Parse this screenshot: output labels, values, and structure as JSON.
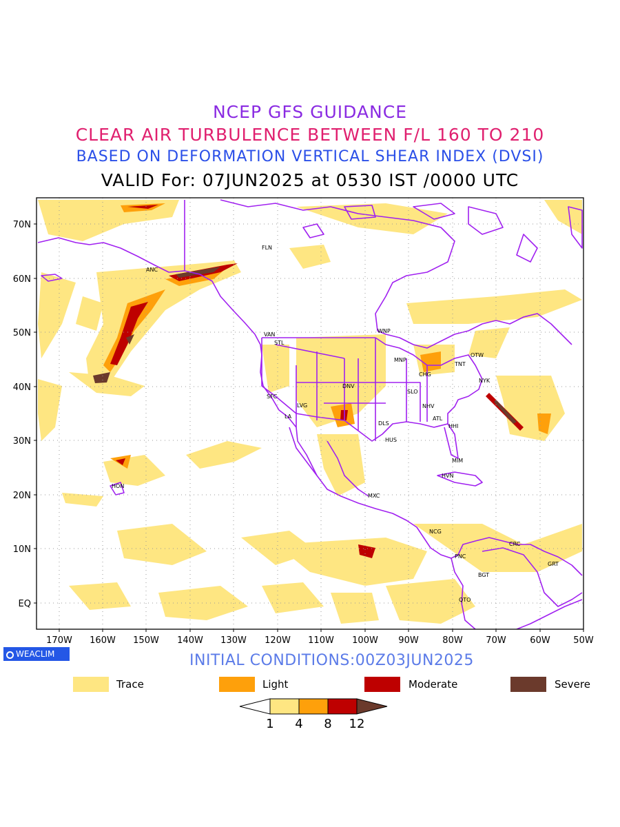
{
  "titles": {
    "line1": "NCEP GFS GUIDANCE",
    "line2": "CLEAR AIR TURBULENCE BETWEEN F/L 160 TO 210",
    "line3": "BASED ON DEFORMATION VERTICAL SHEAR INDEX (DVSI)",
    "line4": "VALID For: 07JUN2025 at 0530 IST /0000 UTC"
  },
  "map": {
    "lat_labels": [
      "70N",
      "60N",
      "50N",
      "40N",
      "30N",
      "20N",
      "10N",
      "EQ"
    ],
    "lon_labels": [
      "170W",
      "160W",
      "150W",
      "140W",
      "130W",
      "120W",
      "110W",
      "100W",
      "90W",
      "80W",
      "70W",
      "60W",
      "50W"
    ],
    "stations": [
      "ANC",
      "FLN",
      "VAN",
      "STL",
      "WNP",
      "MNP",
      "TNT",
      "OTW",
      "CHG",
      "NYK",
      "DNV",
      "SFC",
      "LVG",
      "LA",
      "SLO",
      "NHV",
      "ATL",
      "DLS",
      "HHI",
      "HUS",
      "MIM",
      "HVN",
      "HON",
      "MXC",
      "NCG",
      "CRC",
      "PNC",
      "GRT",
      "BGT",
      "QTO"
    ]
  },
  "badge": {
    "text": "WEACLIM"
  },
  "initial_conditions": "INITIAL CONDITIONS:00Z03JUN2025",
  "legend": [
    {
      "label": "Trace",
      "color": "#fee682"
    },
    {
      "label": "Light",
      "color": "#fea00b"
    },
    {
      "label": "Moderate",
      "color": "#be0000"
    },
    {
      "label": "Severe",
      "color": "#6b3a2c"
    }
  ],
  "colorbar": {
    "ticks": [
      "1",
      "4",
      "8",
      "12"
    ]
  },
  "colors": {
    "coast": "#a020f0",
    "trace": "#fee682",
    "light": "#fea00b",
    "moderate": "#be0000",
    "severe": "#6b3a2c"
  }
}
